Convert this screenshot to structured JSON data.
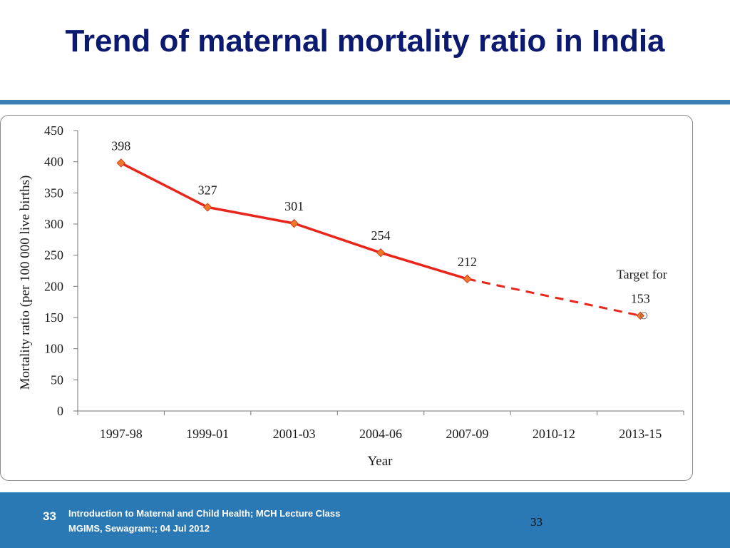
{
  "slide": {
    "title": "Trend of maternal mortality ratio in India"
  },
  "chart_data": {
    "type": "line",
    "title": "",
    "xlabel": "Year",
    "ylabel": "Mortality ratio (per 100 000 live births)",
    "categories": [
      "1997-98",
      "1999-01",
      "2001-03",
      "2004-06",
      "2007-09",
      "2010-12",
      "2013-15"
    ],
    "ylim": [
      0,
      450
    ],
    "yticks": [
      0,
      50,
      100,
      150,
      200,
      250,
      300,
      350,
      400,
      450
    ],
    "series": [
      {
        "values": [
          398,
          327,
          301,
          254,
          212,
          null,
          null
        ],
        "color": "#e8261c",
        "marker_color": "#f0782a",
        "style": "solid"
      },
      {
        "values": [
          null,
          null,
          null,
          null,
          212,
          null,
          153
        ],
        "color": "#e8261c",
        "style": "dashed"
      }
    ],
    "data_labels": [
      "398",
      "327",
      "301",
      "254",
      "212",
      null,
      "153"
    ],
    "annotations": [
      {
        "text": "Target for",
        "category": "2013-15"
      }
    ],
    "target_marker": {
      "category": "2013-15",
      "value": 153
    },
    "grid": false,
    "legend": "none"
  },
  "footer": {
    "page_left": "33",
    "line1": "Introduction to Maternal and Child Health; MCH Lecture Class",
    "line2": "MGIMS, Sewagram;; 04 Jul  2012",
    "page_right": "33"
  }
}
